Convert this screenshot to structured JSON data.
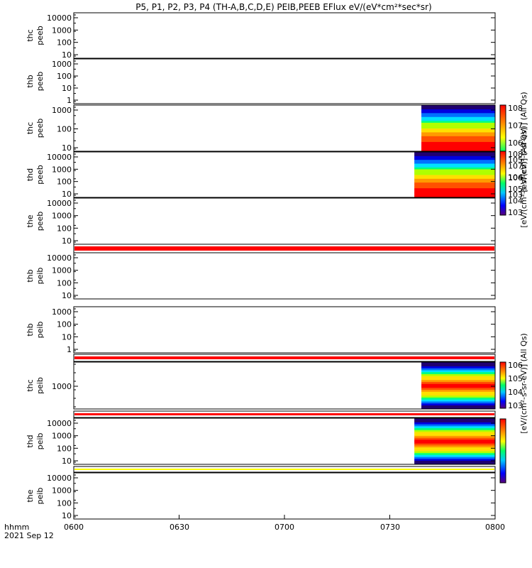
{
  "chart_data": {
    "type": "heatmap",
    "title": "P5, P1, P2, P3, P4 (TH-A,B,C,D,E) PEIB,PEEB EFlux eV/(eV*cm²*sec*sr)",
    "x_ticks": [
      "0600",
      "0630",
      "0700",
      "0730",
      "0800"
    ],
    "x_range": [
      "06:00",
      "08:00"
    ],
    "time_label": "hhmm",
    "date_label": "2021 Sep 12",
    "panels": [
      {
        "probe": "thc",
        "product": "peeb",
        "y_ticks": [
          "10",
          "100",
          "1000",
          "10000"
        ],
        "data_start": null
      },
      {
        "probe": "thb",
        "product": "peeb",
        "y_ticks": [
          "1",
          "10",
          "100",
          "1000"
        ],
        "data_start": null
      },
      {
        "probe": "thc",
        "product": "peeb",
        "y_ticks": [
          "10",
          "100",
          "1000"
        ],
        "data_start": "07:39"
      },
      {
        "probe": "thd",
        "product": "peeb",
        "y_ticks": [
          "10",
          "100",
          "1000",
          "10000"
        ],
        "data_start": "07:37"
      },
      {
        "probe": "the",
        "product": "peeb",
        "y_ticks": [
          "10",
          "100",
          "1000",
          "10000"
        ],
        "data_start": null
      },
      {
        "probe": "thb",
        "product": "peib",
        "y_ticks": [
          "10",
          "100",
          "1000",
          "10000"
        ],
        "data_start": null
      },
      {
        "probe": "thb",
        "product": "peib",
        "y_ticks": [
          "1",
          "10",
          "100",
          "1000"
        ],
        "data_start": null
      },
      {
        "probe": "thc",
        "product": "peib",
        "y_ticks": [
          "1000"
        ],
        "data_start": "07:39"
      },
      {
        "probe": "thd",
        "product": "peib",
        "y_ticks": [
          "10",
          "100",
          "1000",
          "10000"
        ],
        "data_start": "07:37"
      },
      {
        "probe": "the",
        "product": "peib",
        "y_ticks": [
          "10",
          "100",
          "1000",
          "10000"
        ],
        "data_start": null
      }
    ],
    "colorbars": [
      {
        "label": "[eV/(cm²-s-sr-eV)] (All Qs)",
        "exponents": [
          "3",
          "4",
          "5",
          "6",
          "7",
          "8"
        ]
      },
      {
        "label": "[eV/(cm²-s-sr-eV)] (All Qs)",
        "exponents": [
          "3",
          "4",
          "5",
          "6",
          "7",
          "8"
        ]
      },
      {
        "label": "[eV/(cm²-s-sr-eV)] (All Qs)",
        "exponents": [
          "3",
          "4",
          "5",
          "6"
        ]
      }
    ],
    "colors": {
      "flag_red": "#ff0000",
      "flag_yellow": "#ffff00"
    }
  }
}
